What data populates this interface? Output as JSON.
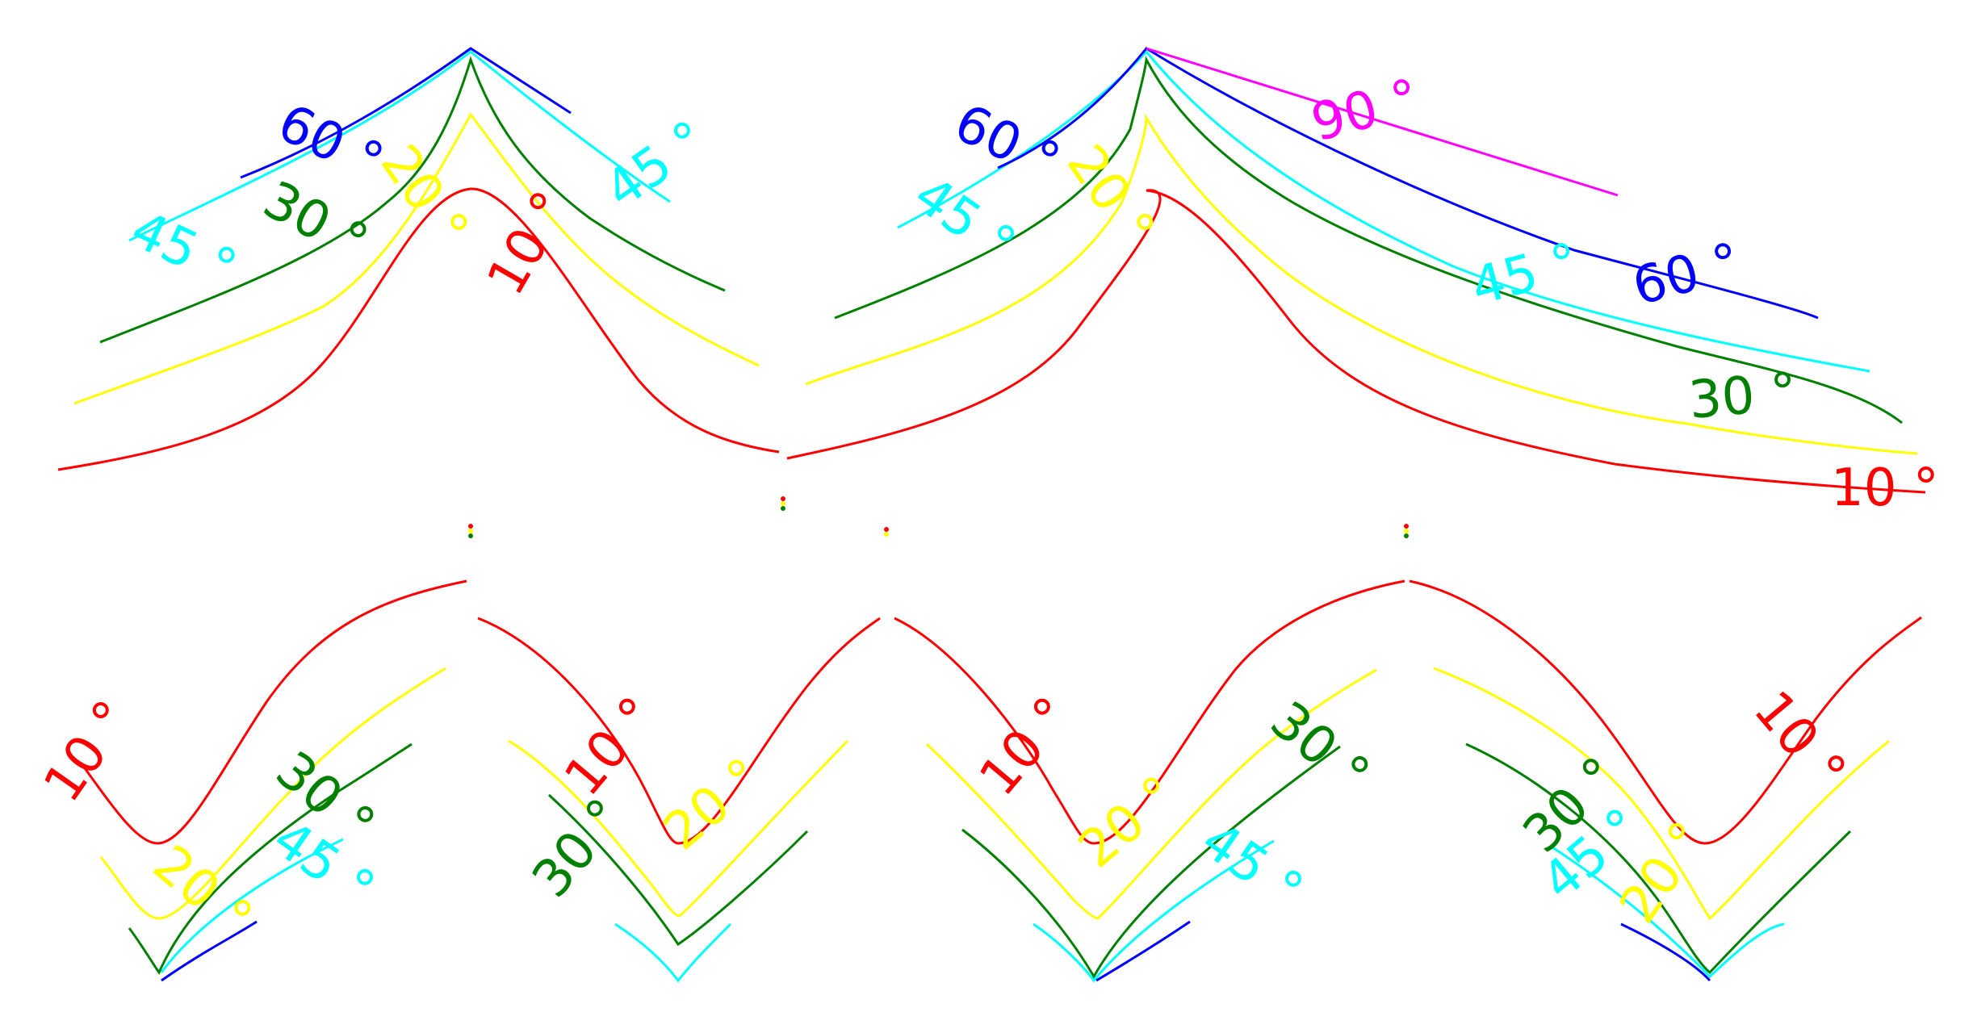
{
  "colors": {
    "10": "#ff0000",
    "20": "#ffff00",
    "30": "#008000",
    "45": "#00ffff",
    "60": "#0000ff",
    "90": "#ff00ff"
  },
  "labels": {
    "d10": "10 °",
    "d20": "20 °",
    "d30": "30 °",
    "d45": "45 °",
    "d60": "60 °",
    "d90": "90 °"
  }
}
